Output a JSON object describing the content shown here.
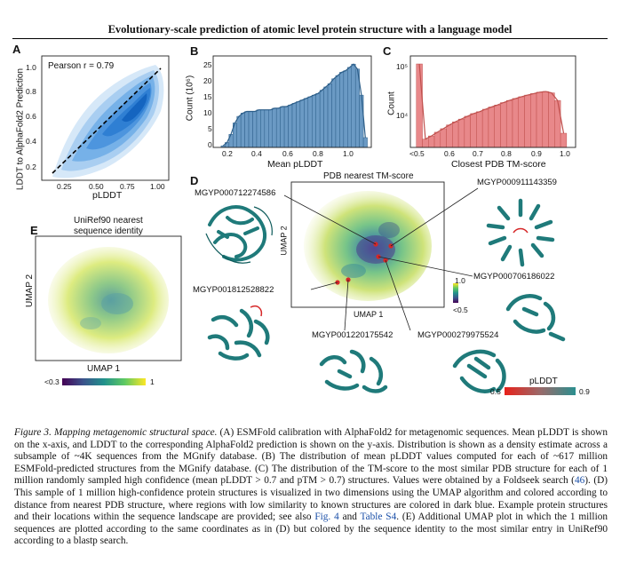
{
  "header": {
    "title": "Evolutionary-scale prediction of atomic level protein structure with a language model"
  },
  "panels": {
    "A": {
      "letter": "A",
      "ylabel": "LDDT to AlphaFold2 Prediction",
      "xlabel": "pLDDT",
      "annotation": "Pearson r = 0.79",
      "x_ticks": [
        "0.25",
        "0.50",
        "0.75",
        "1.00"
      ],
      "y_ticks": [
        "1.0",
        "0.8",
        "0.6",
        "0.4",
        "0.2"
      ]
    },
    "B": {
      "letter": "B",
      "ylabel": "Count (10⁶)",
      "xlabel": "Mean pLDDT",
      "x_ticks": [
        "0.2",
        "0.4",
        "0.6",
        "0.8",
        "1.0"
      ],
      "y_ticks": [
        "25",
        "20",
        "15",
        "10",
        "5",
        "0"
      ]
    },
    "C": {
      "letter": "C",
      "ylabel": "Count",
      "xlabel": "Closest PDB TM-score",
      "x_ticks": [
        "<0.5",
        "0.6",
        "0.7",
        "0.8",
        "0.9",
        "1.0"
      ],
      "y_ticks": [
        "10⁵",
        "10⁴"
      ]
    },
    "D": {
      "letter": "D",
      "title": "PDB nearest TM-score",
      "xlabel": "UMAP 1",
      "ylabel": "UMAP 2",
      "colorbar_max": "1.0",
      "colorbar_min": "<0.5",
      "labels": [
        "MGYP000712274586",
        "MGYP000911143359",
        "MGYP001812528822",
        "MGYP000706186022",
        "MGYP001220175542",
        "MGYP000279975524"
      ],
      "plddt_title": "pLDDT",
      "plddt_min": "0.5",
      "plddt_max": "0.9"
    },
    "E": {
      "letter": "E",
      "title_line1": "UniRef90 nearest",
      "title_line2": "sequence identity",
      "xlabel": "UMAP 1",
      "ylabel": "UMAP 2",
      "colorbar_min": "<0.3",
      "colorbar_max": "1"
    }
  },
  "chart_data": [
    {
      "type": "heatmap",
      "panel": "A",
      "xlabel": "pLDDT",
      "ylabel": "LDDT to AlphaFold2 Prediction",
      "annotation": "Pearson r = 0.79",
      "xlim": [
        0.15,
        1.05
      ],
      "ylim": [
        0.15,
        1.05
      ],
      "colors": {
        "density": "#2f86d6",
        "fit_line": "#000000"
      }
    },
    {
      "type": "bar",
      "panel": "B",
      "xlabel": "Mean pLDDT",
      "ylabel": "Count (10⁶)",
      "xlim": [
        0.2,
        1.0
      ],
      "ylim": [
        0,
        28
      ],
      "x": [
        0.25,
        0.27,
        0.29,
        0.31,
        0.33,
        0.35,
        0.37,
        0.39,
        0.41,
        0.43,
        0.45,
        0.47,
        0.49,
        0.51,
        0.53,
        0.55,
        0.57,
        0.59,
        0.61,
        0.63,
        0.65,
        0.67,
        0.69,
        0.71,
        0.73,
        0.75,
        0.77,
        0.79,
        0.81,
        0.83,
        0.85,
        0.87,
        0.89,
        0.91,
        0.93,
        0.95,
        0.97
      ],
      "values": [
        0.5,
        1.5,
        4,
        7.5,
        9.5,
        10.5,
        11,
        11,
        11,
        11.5,
        11.5,
        11.5,
        11.5,
        12,
        12,
        12.5,
        12.5,
        13,
        13.5,
        14,
        14.5,
        15,
        15.5,
        16,
        16.5,
        17.5,
        18.5,
        19.5,
        21,
        22,
        23,
        23.5,
        24.5,
        25.5,
        24,
        16,
        3
      ],
      "colors": {
        "bar": "#6b9ac4",
        "edge": "#2d5f8a"
      }
    },
    {
      "type": "bar",
      "panel": "C",
      "xlabel": "Closest PDB TM-score",
      "ylabel": "Count",
      "yscale": "log",
      "xlim": [
        0.47,
        1.02
      ],
      "x": [
        0.5,
        0.52,
        0.54,
        0.56,
        0.58,
        0.6,
        0.62,
        0.64,
        0.66,
        0.68,
        0.7,
        0.72,
        0.74,
        0.76,
        0.78,
        0.8,
        0.82,
        0.84,
        0.86,
        0.88,
        0.9,
        0.92,
        0.94,
        0.96,
        0.98
      ],
      "values": [
        120000,
        3000,
        3500,
        4200,
        5000,
        6000,
        7000,
        8000,
        9200,
        10500,
        11500,
        13000,
        14500,
        16000,
        18000,
        20000,
        22000,
        24000,
        26000,
        28000,
        30000,
        31000,
        29000,
        20000,
        4000
      ],
      "colors": {
        "bar": "#e8888a",
        "edge": "#c0504d"
      }
    }
  ],
  "caption": {
    "fig_label": "Figure 3. Mapping metagenomic structural space.",
    "p1": " (A) ESMFold calibration with AlphaFold2 for metagenomic sequences. Mean pLDDT is shown on the x-axis, and LDDT to the corresponding AlphaFold2 prediction is shown on the y-axis. Distribution is shown as a density estimate across a subsample of ~4K sequences from the MGnify database. (B) The distribution of mean pLDDT values computed for each of ~617 million ESMFold-predicted structures from the MGnify database. (C) The distribution of the TM-score to the most similar PDB structure for each of 1 million randomly sampled high confidence (mean pLDDT > 0.7 and pTM > 0.7) structures. Values were obtained by a Foldseek search (",
    "ref1": "46",
    "p2": "). (D) This sample of 1 million high-confidence protein structures is visualized in two dimensions using the UMAP algorithm and colored according to distance from nearest PDB structure, where regions with low similarity to known structures are colored in dark blue. Example protein structures and their locations within the sequence landscape are provided; see also ",
    "ref2": "Fig. 4",
    "p3": " and ",
    "ref3": "Table S4",
    "p4": ". (E) Additional UMAP plot in which the 1 million sequences are plotted according to the same coordinates as in (D) but colored by the sequence identity to the most similar entry in UniRef90 according to a blastp search."
  }
}
